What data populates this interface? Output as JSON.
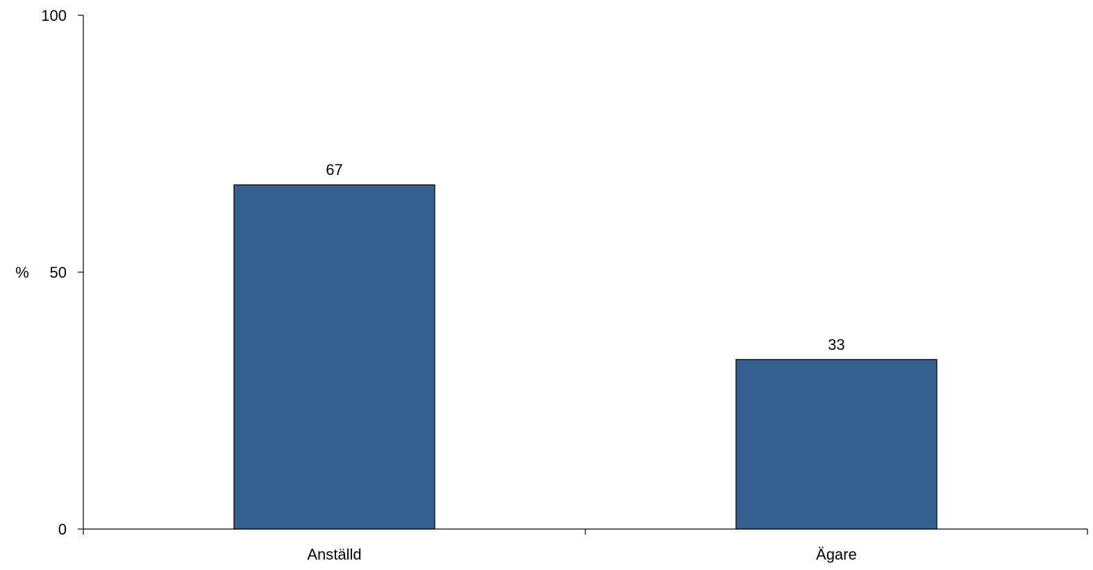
{
  "chart_data": {
    "type": "bar",
    "categories": [
      "Anställd",
      "Ägare"
    ],
    "values": [
      67,
      33
    ],
    "data_labels": [
      "67",
      "33"
    ],
    "title": "",
    "xlabel": "",
    "ylabel": "%",
    "ylim": [
      0,
      100
    ],
    "yticks": [
      "0",
      "50",
      "100"
    ],
    "grid": false,
    "legend": "none",
    "bar_color": "#36608F",
    "bar_border_color": "#000000"
  }
}
